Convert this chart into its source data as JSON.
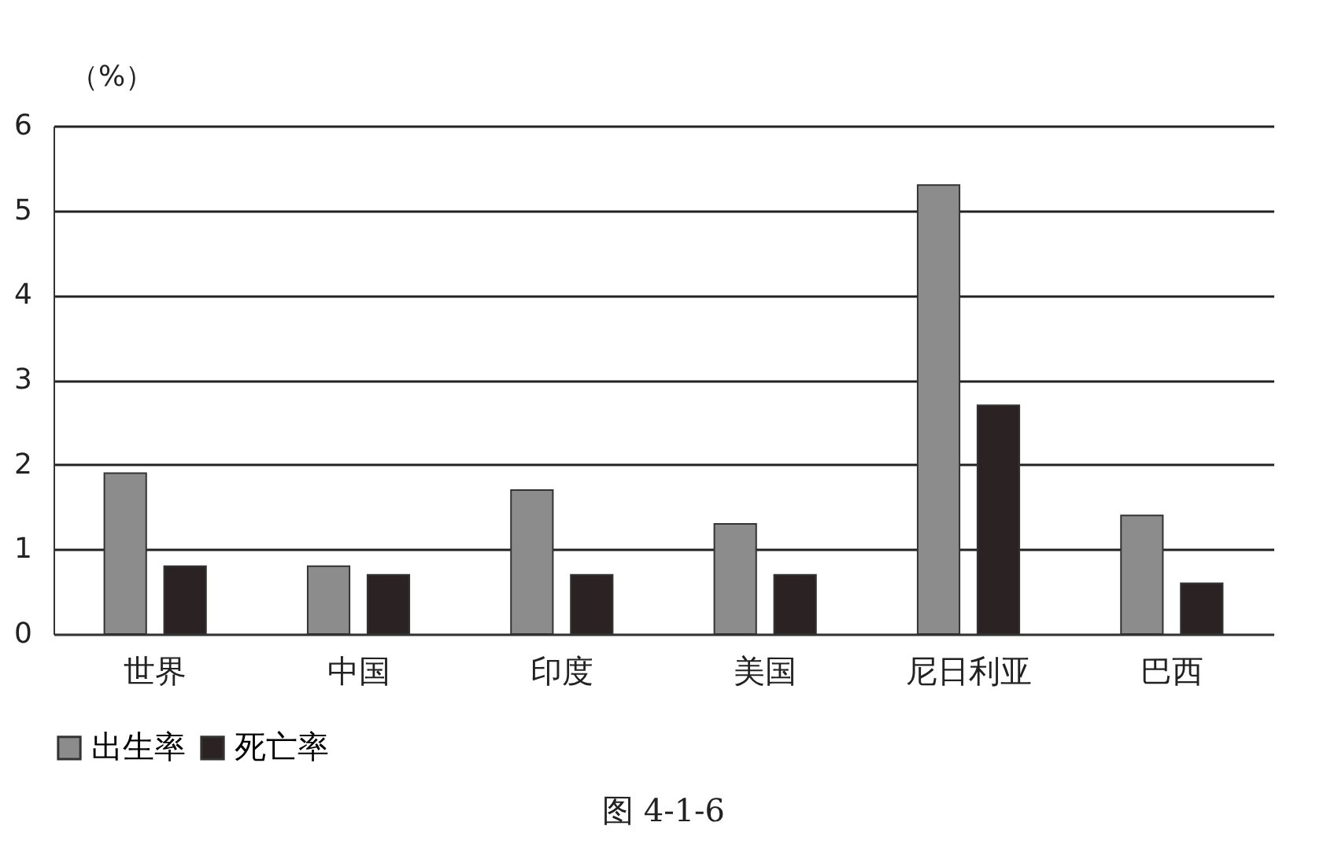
{
  "chart_data": {
    "type": "bar",
    "ylabel": "（%）",
    "categories": [
      "世界",
      "中国",
      "印度",
      "美国",
      "尼日利亚",
      "巴西"
    ],
    "series": [
      {
        "name": "出生率",
        "color": "#8c8c8c",
        "values": [
          1.9,
          0.8,
          1.7,
          1.3,
          5.3,
          1.4
        ]
      },
      {
        "name": "死亡率",
        "color": "#2b2323",
        "values": [
          0.8,
          0.7,
          0.7,
          0.7,
          2.7,
          0.6
        ]
      }
    ],
    "ylim": [
      0,
      6
    ],
    "yticks": [
      0,
      1,
      2,
      3,
      4,
      5,
      6
    ],
    "grid": "y",
    "legend": "bottom",
    "annotations": [
      "图 4-1-6"
    ]
  }
}
